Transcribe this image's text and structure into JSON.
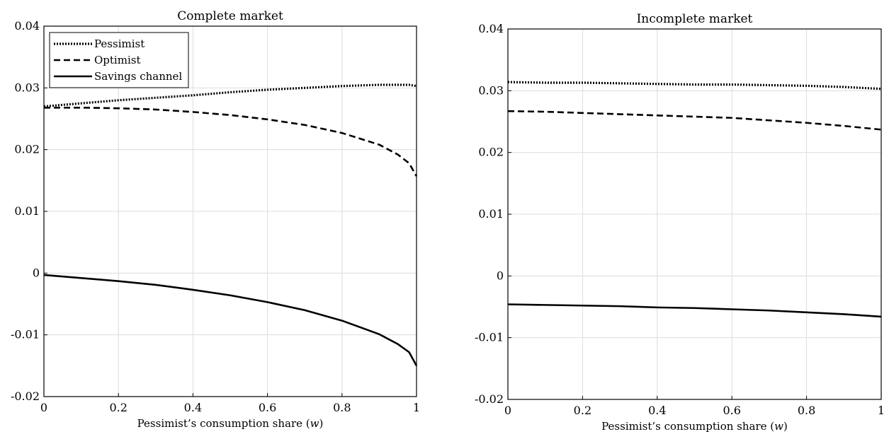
{
  "chart_data": [
    {
      "type": "line",
      "title": "Complete market",
      "xlabel": "Pessimist’s consumption share (w)",
      "xlabel_main": "Pessimist’s consumption share (",
      "xlabel_var": "w",
      "xlabel_close": ")",
      "ylabel": "",
      "xlim": [
        0,
        1
      ],
      "ylim": [
        -0.02,
        0.04
      ],
      "xticks": [
        0,
        0.2,
        0.4,
        0.6,
        0.8,
        1
      ],
      "xtick_labels": [
        "0",
        "0.2",
        "0.4",
        "0.6",
        "0.8",
        "1"
      ],
      "yticks": [
        -0.02,
        -0.01,
        0,
        0.01,
        0.02,
        0.03,
        0.04
      ],
      "ytick_labels": [
        "-0.02",
        "-0.01",
        "0",
        "0.01",
        "0.02",
        "0.03",
        "0.04"
      ],
      "grid": true,
      "legend": "top-left",
      "x": [
        0,
        0.1,
        0.2,
        0.3,
        0.4,
        0.5,
        0.6,
        0.7,
        0.8,
        0.9,
        0.95,
        0.98,
        1.0
      ],
      "series": [
        {
          "name": "Pessimist",
          "style": "dotted",
          "values": [
            0.027,
            0.0275,
            0.028,
            0.0284,
            0.0288,
            0.0293,
            0.0297,
            0.03,
            0.0303,
            0.0305,
            0.0305,
            0.0305,
            0.0303
          ]
        },
        {
          "name": "Optimist",
          "style": "dashed",
          "values": [
            0.0268,
            0.0268,
            0.0267,
            0.0265,
            0.0261,
            0.0256,
            0.0249,
            0.024,
            0.0227,
            0.0208,
            0.0192,
            0.0178,
            0.0157
          ]
        },
        {
          "name": "Savings channel",
          "style": "solid",
          "values": [
            -0.0003,
            -0.0008,
            -0.0013,
            -0.0019,
            -0.0027,
            -0.0036,
            -0.0047,
            -0.006,
            -0.0077,
            -0.0099,
            -0.0115,
            -0.0128,
            -0.015
          ]
        }
      ]
    },
    {
      "type": "line",
      "title": "Incomplete market",
      "xlabel": "Pessimist’s consumption share (w)",
      "xlabel_main": "Pessimist’s consumption share (",
      "xlabel_var": "w",
      "xlabel_close": ")",
      "ylabel": "",
      "xlim": [
        0,
        1
      ],
      "ylim": [
        -0.02,
        0.04
      ],
      "xticks": [
        0,
        0.2,
        0.4,
        0.6,
        0.8,
        1
      ],
      "xtick_labels": [
        "0",
        "0.2",
        "0.4",
        "0.6",
        "0.8",
        "1"
      ],
      "yticks": [
        -0.02,
        -0.01,
        0,
        0.01,
        0.02,
        0.03,
        0.04
      ],
      "ytick_labels": [
        "-0.02",
        "-0.01",
        "0",
        "0.01",
        "0.02",
        "0.03",
        "0.04"
      ],
      "grid": true,
      "legend": "none",
      "x": [
        0,
        0.1,
        0.2,
        0.3,
        0.4,
        0.5,
        0.6,
        0.7,
        0.8,
        0.9,
        1.0
      ],
      "series": [
        {
          "style": "dotted",
          "values": [
            0.0314,
            0.0313,
            0.0313,
            0.0312,
            0.0311,
            0.031,
            0.031,
            0.0309,
            0.0308,
            0.0306,
            0.0303
          ]
        },
        {
          "style": "dashed",
          "values": [
            0.0267,
            0.0266,
            0.0264,
            0.0262,
            0.026,
            0.0258,
            0.0256,
            0.0252,
            0.0248,
            0.0243,
            0.0237
          ]
        },
        {
          "style": "solid",
          "values": [
            -0.0046,
            -0.0047,
            -0.0048,
            -0.0049,
            -0.0051,
            -0.0052,
            -0.0054,
            -0.0056,
            -0.0059,
            -0.0062,
            -0.0066
          ]
        }
      ]
    }
  ]
}
